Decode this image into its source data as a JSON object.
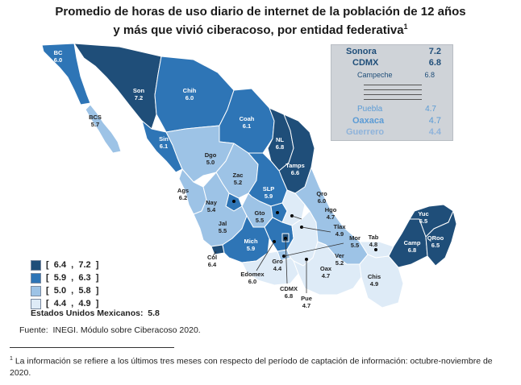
{
  "title": {
    "line1": "Promedio de horas de uso diario de internet de la población de 12 años",
    "line2": "y más que vivió ciberacoso, por entidad federativa",
    "marker": "1"
  },
  "colors": {
    "class1": "#1f4e79",
    "class2": "#2e75b6",
    "class3": "#9dc3e6",
    "class4": "#deebf7"
  },
  "ranking": [
    {
      "name": "Sonora",
      "value": "7.2",
      "color": "#1f4e79"
    },
    {
      "name": "CDMX",
      "value": "6.8",
      "color": "#1f4e79"
    },
    {
      "name": "Campeche",
      "value": "6.8",
      "color": "#1f4e79"
    },
    {
      "name": "Puebla",
      "value": "4.7",
      "color": "#5b9bd5"
    },
    {
      "name": "Oaxaca",
      "value": "4.7",
      "color": "#5b9bd5"
    },
    {
      "name": "Guerrero",
      "value": "4.4",
      "color": "#8fb3da"
    }
  ],
  "legend": [
    {
      "range": "[  6.4  ,  7.2  ]",
      "color": "#1f4e79"
    },
    {
      "range": "[  5.9  ,  6.3  ]",
      "color": "#2e75b6"
    },
    {
      "range": "[  5.0  ,  5.8  ]",
      "color": "#9dc3e6"
    },
    {
      "range": "[  4.4  ,  4.9  ]",
      "color": "#deebf7"
    }
  ],
  "national": {
    "label": "Estados Unidos Mexicanos:",
    "value": "5.8"
  },
  "source": "Fuente:  INEGI. Módulo sobre Ciberacoso 2020.",
  "footnote": {
    "marker": "1",
    "text": "La información se refiere a los últimos tres meses con respecto del período de captación de información: octubre-noviembre de 2020."
  },
  "states": [
    {
      "abbr": "BC",
      "value": "6.0"
    },
    {
      "abbr": "BCS",
      "value": "5.7"
    },
    {
      "abbr": "Son",
      "value": "7.2"
    },
    {
      "abbr": "Chih",
      "value": "6.0"
    },
    {
      "abbr": "Coah",
      "value": "6.1"
    },
    {
      "abbr": "Sin",
      "value": "6.1"
    },
    {
      "abbr": "Dgo",
      "value": "5.0"
    },
    {
      "abbr": "NL",
      "value": "6.8"
    },
    {
      "abbr": "Tamps",
      "value": "6.6"
    },
    {
      "abbr": "Zac",
      "value": "5.2"
    },
    {
      "abbr": "SLP",
      "value": "5.9"
    },
    {
      "abbr": "Ags",
      "value": "6.2"
    },
    {
      "abbr": "Nay",
      "value": "5.4"
    },
    {
      "abbr": "Qro",
      "value": "6.0"
    },
    {
      "abbr": "Gto",
      "value": "5.5"
    },
    {
      "abbr": "Hgo",
      "value": "4.7"
    },
    {
      "abbr": "Jal",
      "value": "5.5"
    },
    {
      "abbr": "Tlax",
      "value": "4.9"
    },
    {
      "abbr": "Mich",
      "value": "5.9"
    },
    {
      "abbr": "Col",
      "value": "6.4"
    },
    {
      "abbr": "Mor",
      "value": "5.5"
    },
    {
      "abbr": "Edomex",
      "value": "6.0"
    },
    {
      "abbr": "Gro",
      "value": "4.4"
    },
    {
      "abbr": "CDMX",
      "value": "6.8"
    },
    {
      "abbr": "Pue",
      "value": "4.7"
    },
    {
      "abbr": "Ver",
      "value": "5.2"
    },
    {
      "abbr": "Oax",
      "value": "4.7"
    },
    {
      "abbr": "Tab",
      "value": "4.8"
    },
    {
      "abbr": "Chis",
      "value": "4.9"
    },
    {
      "abbr": "Camp",
      "value": "6.8"
    },
    {
      "abbr": "Yuc",
      "value": "6.5"
    },
    {
      "abbr": "QRoo",
      "value": "6.5"
    }
  ]
}
